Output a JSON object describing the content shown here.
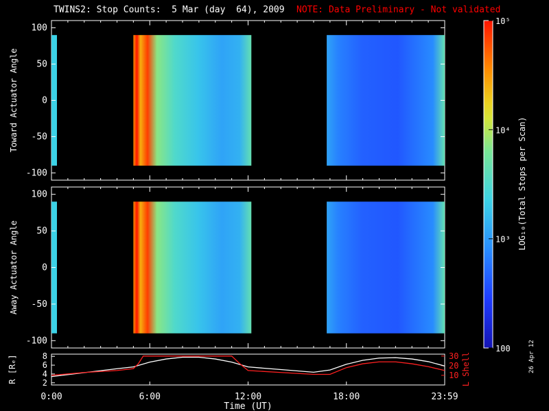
{
  "title": {
    "main": "TWINS2: Stop Counts:  5 Mar (day  64), 2009",
    "note": "NOTE: Data Preliminary - Not validated"
  },
  "colors": {
    "background": "#000000",
    "note": "#ff0000",
    "axes": "#ffffff",
    "r_line": "#ffffff",
    "l_line": "#ff2020"
  },
  "chart_data": [
    {
      "type": "heatmap",
      "name": "toward",
      "ylabel": "Toward Actuator Angle",
      "ylim": [
        -110,
        110
      ],
      "yticks": [
        100,
        50,
        0,
        -50,
        -100
      ],
      "xlim_hours": [
        0,
        24
      ],
      "colorscale": "log",
      "data_intervals_hours": [
        [
          5.0,
          12.2
        ],
        [
          16.8,
          24.0
        ]
      ],
      "angle_range": [
        -90,
        90
      ],
      "description_levels": {
        "early_edge": "1e5",
        "middle": "1.5e4",
        "late_segment": "700"
      }
    },
    {
      "type": "heatmap",
      "name": "away",
      "ylabel": "Away Actuator Angle",
      "ylim": [
        -110,
        110
      ],
      "yticks": [
        100,
        50,
        0,
        -50,
        -100
      ],
      "xlim_hours": [
        0,
        24
      ],
      "colorscale": "log",
      "data_intervals_hours": [
        [
          5.0,
          12.2
        ],
        [
          16.8,
          24.0
        ]
      ],
      "angle_range": [
        -90,
        90
      ]
    },
    {
      "type": "line",
      "name": "orbit",
      "ylabel_left": "R [Rₑ]",
      "ylabel_right": "L Shell",
      "yticks_left": [
        8,
        6,
        4,
        2
      ],
      "yticks_right": [
        30,
        20,
        10
      ],
      "ylim_left": [
        1.5,
        8.5
      ],
      "ylim_right": [
        0,
        32
      ],
      "x_ticks": [
        "0:00",
        "6:00",
        "12:00",
        "18:00",
        "23:59"
      ],
      "xlabel": "Time (UT)",
      "series": [
        {
          "name": "R",
          "x": [
            0,
            2,
            4,
            5,
            6,
            7,
            8,
            9,
            10,
            11,
            12,
            14,
            16,
            17,
            18,
            19,
            20,
            21,
            22,
            23,
            24
          ],
          "y": [
            3.4,
            4.3,
            5.2,
            5.6,
            6.7,
            7.4,
            7.8,
            7.8,
            7.4,
            6.7,
            5.6,
            5.0,
            4.4,
            4.9,
            6.2,
            7.1,
            7.6,
            7.7,
            7.4,
            6.8,
            5.8
          ]
        },
        {
          "name": "L",
          "x": [
            0,
            2,
            4,
            5,
            5.3,
            5.6,
            11,
            11.5,
            12,
            14,
            16,
            17,
            18,
            19,
            20,
            21,
            22,
            23,
            24
          ],
          "y": [
            10,
            13,
            15,
            17,
            22,
            30,
            30,
            22,
            15,
            13,
            11,
            11,
            18,
            22,
            24,
            24,
            22,
            19,
            15
          ]
        }
      ]
    }
  ],
  "colorbar": {
    "label": "LOG₁₀(Total Stops per Scan)",
    "ticks": [
      "10⁵",
      "10⁴",
      "10³",
      "100"
    ],
    "range": [
      100,
      100000
    ]
  },
  "stamp": "26 Apr 12"
}
